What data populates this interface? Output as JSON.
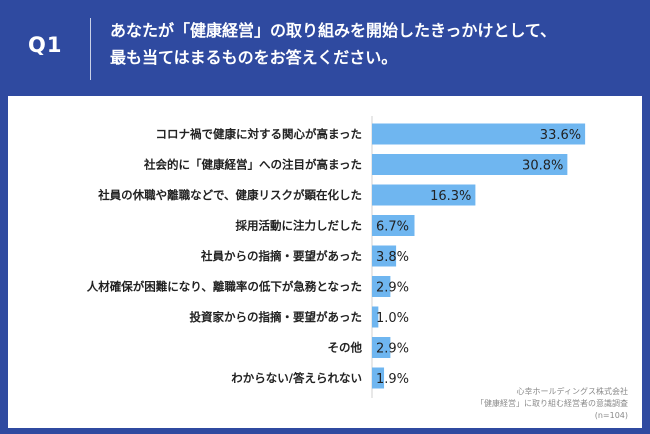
{
  "header": {
    "q_label": "Q1",
    "question_line1": "あなたが「健康経営」の取り組みを開始したきっかけとして、",
    "question_line2": "最も当てはまるものをお答えください。"
  },
  "footer": {
    "line1": "心幸ホールディングス株式会社",
    "line2": "「健康経営」に取り組む経営者の意識調査",
    "line3": "(n=104)"
  },
  "colors": {
    "background": "#2f4aa0",
    "bar": "#6fb6f0",
    "text": "#222222"
  },
  "chart_data": {
    "type": "bar",
    "orientation": "horizontal",
    "categories": [
      "コロナ禍で健康に対する関心が高まった",
      "社会的に「健康経営」への注目が高まった",
      "社員の休職や離職などで、健康リスクが顕在化した",
      "採用活動に注力しだした",
      "社員からの指摘・要望があった",
      "人材確保が困難になり、離職率の低下が急務となった",
      "投資家からの指摘・要望があった",
      "その他",
      "わからない/答えられない"
    ],
    "values": [
      33.6,
      30.8,
      16.3,
      6.7,
      3.8,
      2.9,
      1.0,
      2.9,
      1.9
    ],
    "value_labels": [
      "33.6%",
      "30.8%",
      "16.3%",
      "6.7%",
      "3.8%",
      "2.9%",
      "1.0%",
      "2.9%",
      "1.9%"
    ],
    "xlim": [
      0,
      35
    ],
    "grid": false
  }
}
